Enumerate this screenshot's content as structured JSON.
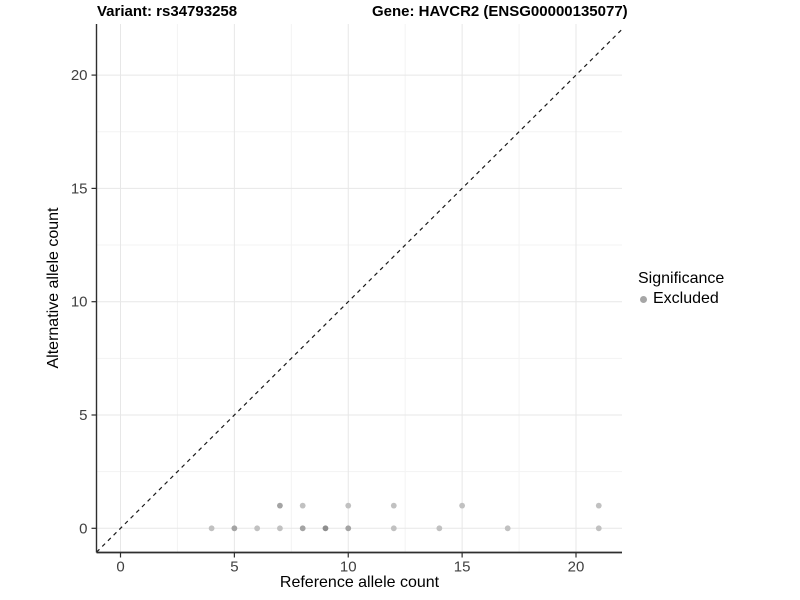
{
  "titles": {
    "variant": "Variant: rs34793258",
    "gene": "Gene: HAVCR2 (ENSG00000135077)"
  },
  "axes": {
    "x_label": "Reference allele count",
    "y_label": "Alternative allele count"
  },
  "legend": {
    "title": "Significance",
    "items": [
      {
        "label": "Excluded",
        "color": "#a6a6a6"
      }
    ]
  },
  "chart_data": {
    "type": "scatter",
    "title_left": "Variant: rs34793258",
    "title_right": "Gene: HAVCR2 (ENSG00000135077)",
    "xlabel": "Reference allele count",
    "ylabel": "Alternative allele count",
    "xlim": [
      -1.05,
      22.0
    ],
    "ylim": [
      -1.1,
      22.25
    ],
    "x_ticks": [
      0,
      5,
      10,
      15,
      20
    ],
    "y_ticks": [
      0,
      5,
      10,
      15,
      20
    ],
    "x_minor_ticks": [
      2.5,
      7.5,
      12.5,
      17.5
    ],
    "y_minor_ticks": [
      2.5,
      7.5,
      12.5,
      17.5
    ],
    "grid": true,
    "legend_position": "right",
    "abline": {
      "slope": 1,
      "intercept": 0,
      "style": "dashed",
      "color": "#1a1a1a"
    },
    "series": [
      {
        "name": "Excluded",
        "points": [
          {
            "x": 4,
            "y": 0,
            "shade": "light"
          },
          {
            "x": 5,
            "y": 0,
            "shade": "medium"
          },
          {
            "x": 6,
            "y": 0,
            "shade": "light"
          },
          {
            "x": 7,
            "y": 0,
            "shade": "light"
          },
          {
            "x": 8,
            "y": 0,
            "shade": "medium"
          },
          {
            "x": 9,
            "y": 0,
            "shade": "dark"
          },
          {
            "x": 10,
            "y": 0,
            "shade": "medium"
          },
          {
            "x": 12,
            "y": 0,
            "shade": "light"
          },
          {
            "x": 14,
            "y": 0,
            "shade": "light"
          },
          {
            "x": 17,
            "y": 0,
            "shade": "light"
          },
          {
            "x": 21,
            "y": 0,
            "shade": "light"
          },
          {
            "x": 7,
            "y": 1,
            "shade": "medium"
          },
          {
            "x": 8,
            "y": 1,
            "shade": "light"
          },
          {
            "x": 10,
            "y": 1,
            "shade": "light"
          },
          {
            "x": 12,
            "y": 1,
            "shade": "light"
          },
          {
            "x": 15,
            "y": 1,
            "shade": "light"
          },
          {
            "x": 21,
            "y": 1,
            "shade": "light"
          }
        ]
      }
    ],
    "style": {
      "point_colors": {
        "light": "#c1c1c1",
        "medium": "#a4a4a4",
        "dark": "#8e8e8e"
      },
      "grid_major_color": "#e7e7e7",
      "grid_minor_color": "#f3f3f3",
      "axis_line_color": "#2e2e2e",
      "tick_label_color": "#404040",
      "background": "#ffffff"
    }
  }
}
